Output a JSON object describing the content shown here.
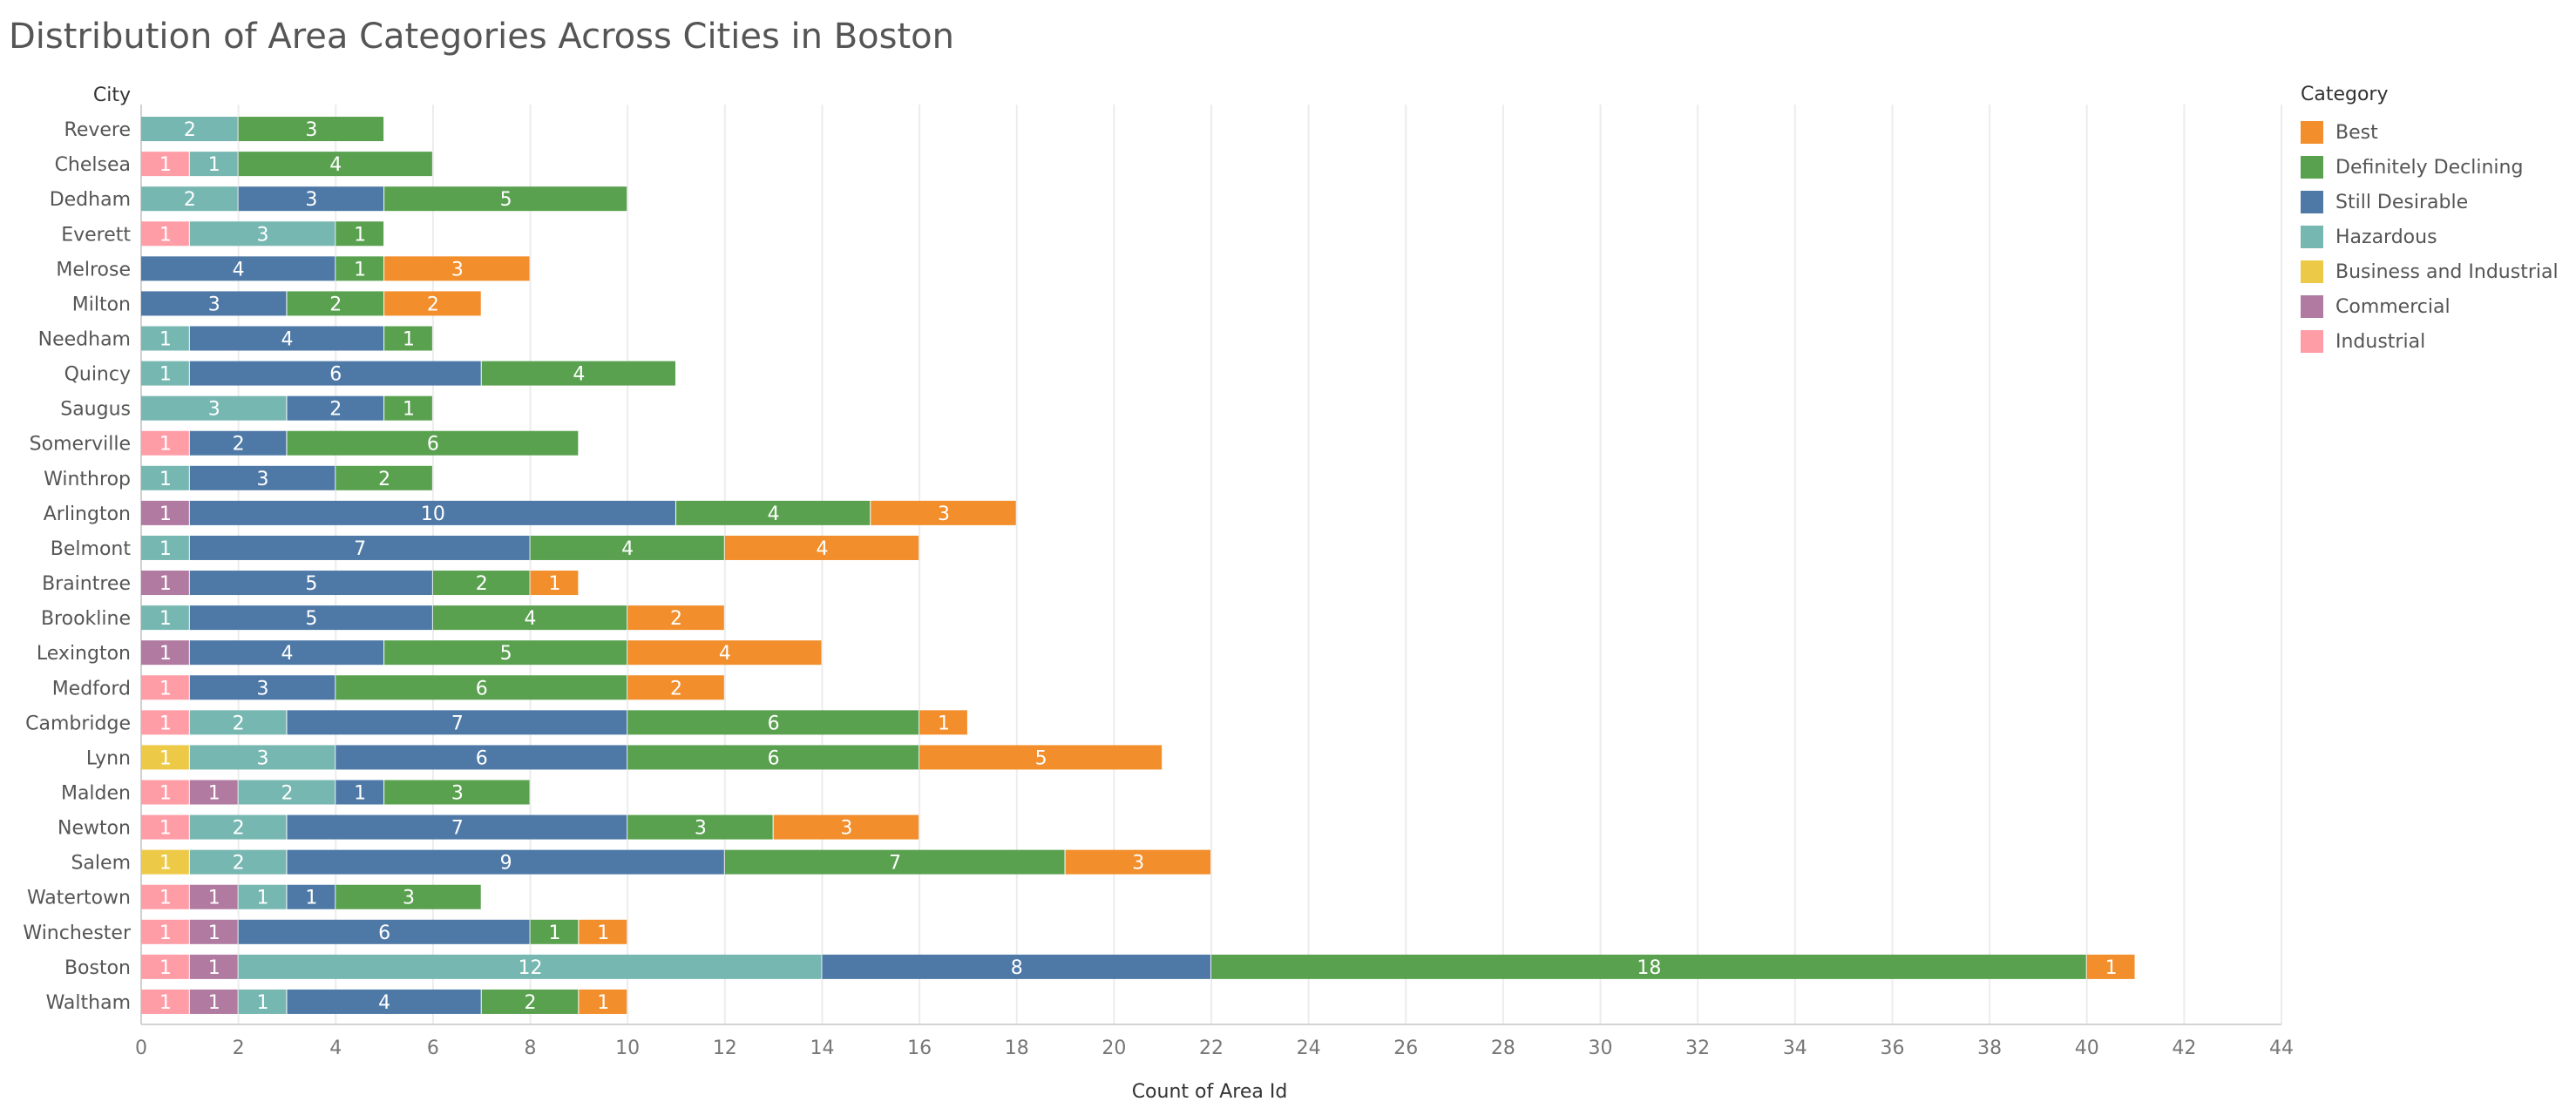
{
  "chart_data": {
    "type": "bar",
    "orientation": "horizontal",
    "stacked": true,
    "title": "Distribution of Area Categories Across Cities in Boston",
    "xlabel": "Count of Area Id",
    "ylabel": "City",
    "xlim": [
      0,
      44
    ],
    "xticks": [
      0,
      2,
      4,
      6,
      8,
      10,
      12,
      14,
      16,
      18,
      20,
      22,
      24,
      26,
      28,
      30,
      32,
      34,
      36,
      38,
      40,
      42,
      44
    ],
    "grid": "vertical",
    "legend_title": "Category",
    "legend_position": "right",
    "legend_order": [
      "Best",
      "Definitely Declining",
      "Still Desirable",
      "Hazardous",
      "Business and Industrial",
      "Commercial",
      "Industrial"
    ],
    "stack_order": [
      "Industrial",
      "Business and Industrial",
      "Commercial",
      "Hazardous",
      "Still Desirable",
      "Definitely Declining",
      "Best"
    ],
    "colors": {
      "Best": "#F28E2B",
      "Definitely Declining": "#59A14F",
      "Still Desirable": "#4E79A7",
      "Hazardous": "#76B7B2",
      "Business and Industrial": "#EDC948",
      "Commercial": "#B07AA1",
      "Industrial": "#FF9DA7"
    },
    "categories": [
      "Revere",
      "Chelsea",
      "Dedham",
      "Everett",
      "Melrose",
      "Milton",
      "Needham",
      "Quincy",
      "Saugus",
      "Somerville",
      "Winthrop",
      "Arlington",
      "Belmont",
      "Braintree",
      "Brookline",
      "Lexington",
      "Medford",
      "Cambridge",
      "Lynn",
      "Malden",
      "Newton",
      "Salem",
      "Watertown",
      "Winchester",
      "Boston",
      "Waltham"
    ],
    "series": [
      {
        "name": "Industrial",
        "values": [
          0,
          1,
          0,
          1,
          0,
          0,
          0,
          0,
          0,
          1,
          0,
          0,
          0,
          0,
          0,
          0,
          1,
          1,
          0,
          1,
          1,
          0,
          1,
          1,
          1,
          1
        ]
      },
      {
        "name": "Business and Industrial",
        "values": [
          0,
          0,
          0,
          0,
          0,
          0,
          0,
          0,
          0,
          0,
          0,
          0,
          0,
          0,
          0,
          0,
          0,
          0,
          1,
          0,
          0,
          1,
          0,
          0,
          0,
          0
        ]
      },
      {
        "name": "Commercial",
        "values": [
          0,
          0,
          0,
          0,
          0,
          0,
          0,
          0,
          0,
          0,
          0,
          1,
          0,
          1,
          0,
          1,
          0,
          0,
          0,
          1,
          0,
          0,
          1,
          1,
          1,
          1
        ]
      },
      {
        "name": "Hazardous",
        "values": [
          2,
          1,
          2,
          3,
          0,
          0,
          1,
          1,
          3,
          0,
          1,
          0,
          1,
          0,
          1,
          0,
          0,
          2,
          3,
          2,
          2,
          2,
          1,
          0,
          12,
          1
        ]
      },
      {
        "name": "Still Desirable",
        "values": [
          0,
          0,
          3,
          0,
          4,
          3,
          4,
          6,
          2,
          2,
          3,
          10,
          7,
          5,
          5,
          4,
          3,
          7,
          6,
          1,
          7,
          9,
          1,
          6,
          8,
          4
        ]
      },
      {
        "name": "Definitely Declining",
        "values": [
          3,
          4,
          5,
          1,
          1,
          2,
          1,
          4,
          1,
          6,
          2,
          4,
          4,
          2,
          4,
          5,
          6,
          6,
          6,
          3,
          3,
          7,
          3,
          1,
          18,
          2
        ]
      },
      {
        "name": "Best",
        "values": [
          0,
          0,
          0,
          0,
          3,
          2,
          0,
          0,
          0,
          0,
          0,
          3,
          4,
          1,
          2,
          4,
          2,
          1,
          5,
          0,
          3,
          3,
          0,
          1,
          1,
          1
        ]
      }
    ]
  }
}
